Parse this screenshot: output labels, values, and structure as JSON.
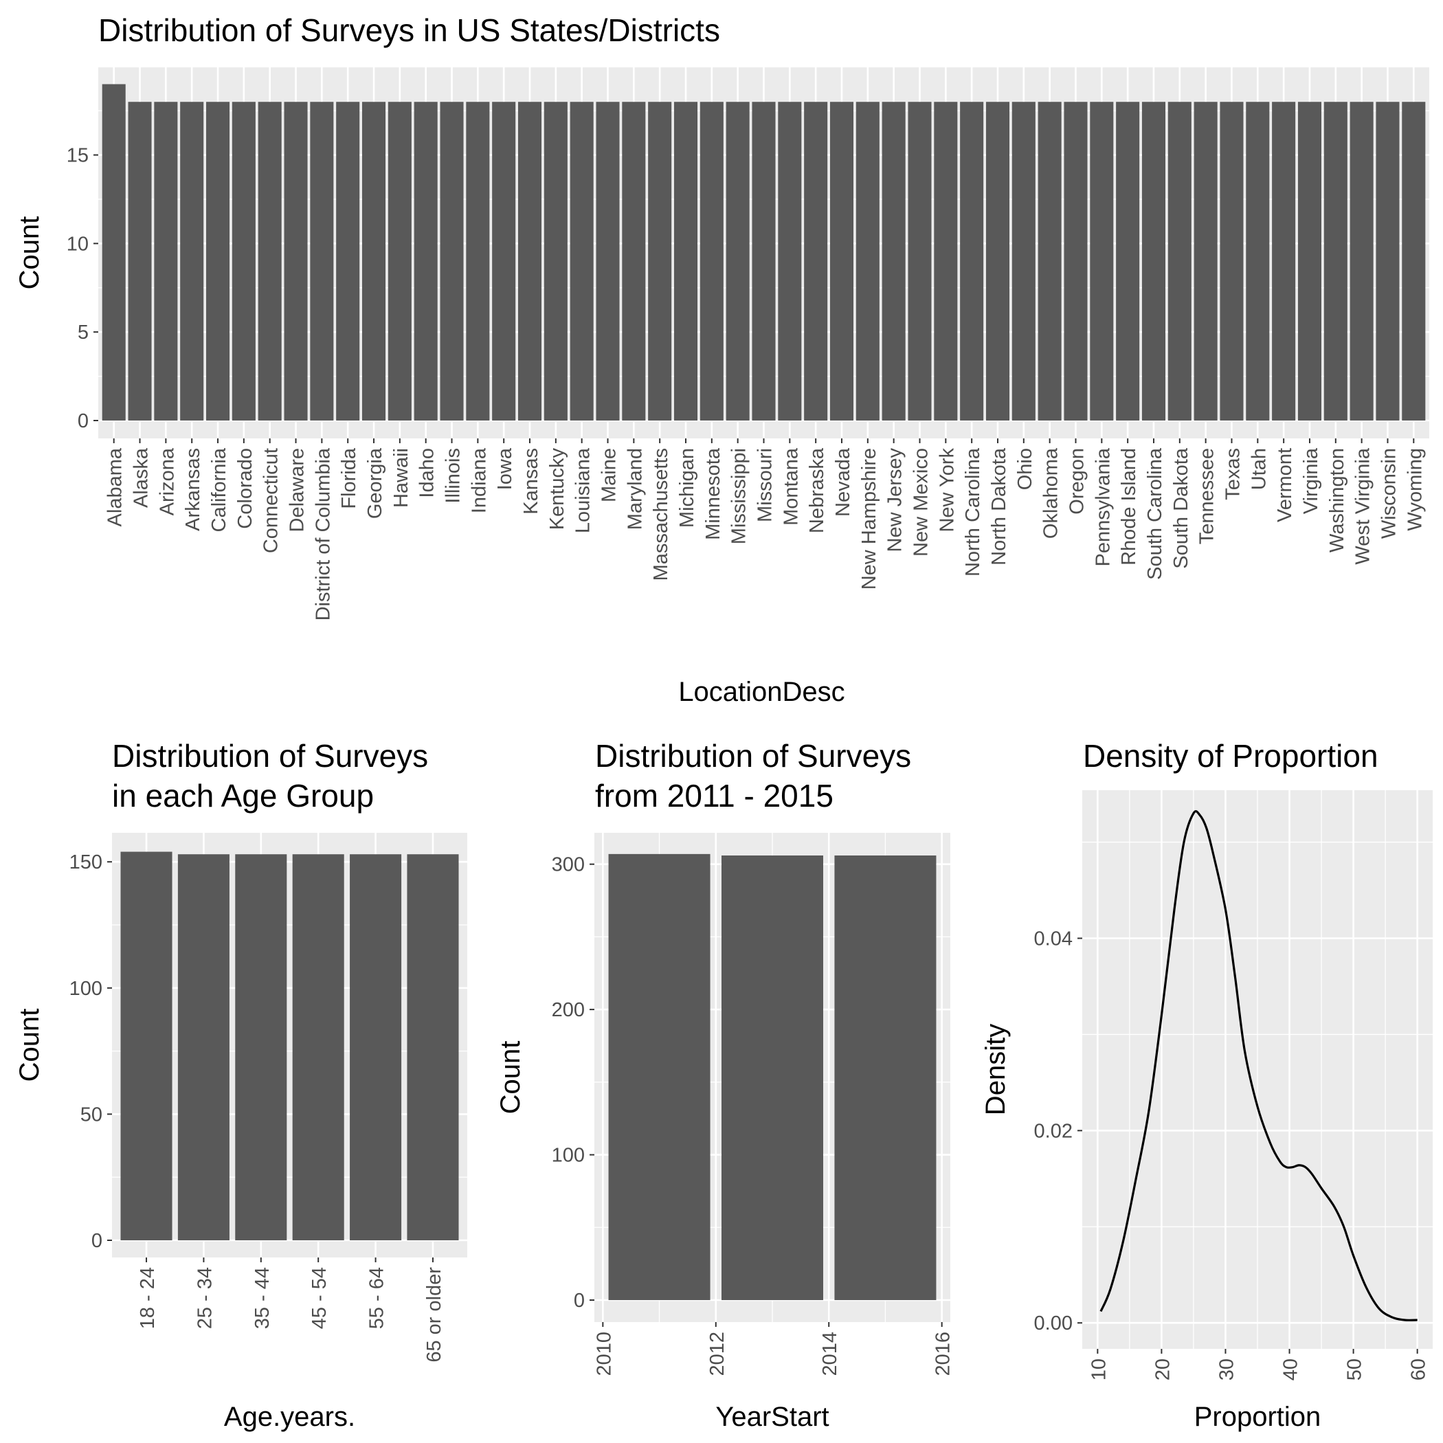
{
  "chart_data": [
    {
      "type": "bar",
      "title": "Distribution of Surveys in US States/Districts",
      "xlabel": "LocationDesc",
      "ylabel": "Count",
      "ylim": [
        0,
        19.95
      ],
      "y_ticks": [
        0,
        5,
        10,
        15
      ],
      "grid": true,
      "categories": [
        "Alabama",
        "Alaska",
        "Arizona",
        "Arkansas",
        "California",
        "Colorado",
        "Connecticut",
        "Delaware",
        "District of Columbia",
        "Florida",
        "Georgia",
        "Hawaii",
        "Idaho",
        "Illinois",
        "Indiana",
        "Iowa",
        "Kansas",
        "Kentucky",
        "Louisiana",
        "Maine",
        "Maryland",
        "Massachusetts",
        "Michigan",
        "Minnesota",
        "Mississippi",
        "Missouri",
        "Montana",
        "Nebraska",
        "Nevada",
        "New Hampshire",
        "New Jersey",
        "New Mexico",
        "New York",
        "North Carolina",
        "North Dakota",
        "Ohio",
        "Oklahoma",
        "Oregon",
        "Pennsylvania",
        "Rhode Island",
        "South Carolina",
        "South Dakota",
        "Tennessee",
        "Texas",
        "Utah",
        "Vermont",
        "Virginia",
        "Washington",
        "West Virginia",
        "Wisconsin",
        "Wyoming"
      ],
      "values": [
        19,
        18,
        18,
        18,
        18,
        18,
        18,
        18,
        18,
        18,
        18,
        18,
        18,
        18,
        18,
        18,
        18,
        18,
        18,
        18,
        18,
        18,
        18,
        18,
        18,
        18,
        18,
        18,
        18,
        18,
        18,
        18,
        18,
        18,
        18,
        18,
        18,
        18,
        18,
        18,
        18,
        18,
        18,
        18,
        18,
        18,
        18,
        18,
        18,
        18,
        18
      ],
      "bar_color": "#595959",
      "panel_color": "#ebebeb"
    },
    {
      "type": "bar",
      "title_lines": [
        "Distribution of Surveys",
        " in each Age Group"
      ],
      "xlabel": "Age.years.",
      "ylabel": "Count",
      "ylim": [
        0,
        161.5
      ],
      "y_ticks": [
        0,
        50,
        100,
        150
      ],
      "grid": true,
      "categories": [
        "18 - 24",
        "25 - 34",
        "35 - 44",
        "45 - 54",
        "55 - 64",
        "65 or older"
      ],
      "values": [
        154,
        153,
        153,
        153,
        153,
        153
      ],
      "bar_color": "#595959",
      "panel_color": "#ebebeb"
    },
    {
      "type": "bar",
      "title_lines": [
        "Distribution of Surveys",
        " from 2011 - 2015"
      ],
      "xlabel": "YearStart",
      "ylabel": "Count",
      "xlim": [
        2009.85,
        2016.15
      ],
      "ylim": [
        0,
        321.6
      ],
      "x_ticks": [
        2010,
        2012,
        2014,
        2016
      ],
      "y_ticks": [
        0,
        100,
        200,
        300
      ],
      "grid": true,
      "bars": [
        {
          "x": 2011,
          "width": 1.8,
          "value": 307
        },
        {
          "x": 2013,
          "width": 1.8,
          "value": 306
        },
        {
          "x": 2015,
          "width": 1.8,
          "value": 306
        }
      ],
      "bar_color": "#595959",
      "panel_color": "#ebebeb"
    },
    {
      "type": "line",
      "title": "Density of Proportion",
      "xlabel": "Proportion",
      "ylabel": "Density",
      "xlim": [
        7.6,
        62.4
      ],
      "ylim": [
        -0.0027,
        0.0554
      ],
      "x_ticks": [
        10,
        20,
        30,
        40,
        50,
        60
      ],
      "y_ticks": [
        0.0,
        0.02,
        0.04
      ],
      "y_tick_labels": [
        "0.00",
        "0.02",
        "0.04"
      ],
      "grid": true,
      "series": [
        {
          "x": [
            10.5,
            12,
            14,
            16,
            18,
            20,
            22,
            23.5,
            25,
            26,
            27,
            28,
            30,
            31.5,
            33,
            35,
            37,
            38.5,
            39.5,
            40.5,
            41.5,
            42.5,
            43.5,
            45,
            47,
            48.5,
            50,
            52,
            54,
            56,
            58,
            60
          ],
          "y": [
            0.0012,
            0.0035,
            0.0085,
            0.015,
            0.022,
            0.032,
            0.043,
            0.05,
            0.053,
            0.0528,
            0.0515,
            0.049,
            0.043,
            0.036,
            0.0283,
            0.0225,
            0.0187,
            0.0168,
            0.0162,
            0.0162,
            0.0164,
            0.0162,
            0.0155,
            0.014,
            0.0121,
            0.01,
            0.007,
            0.0037,
            0.0015,
            0.0006,
            0.0003,
            0.0003
          ]
        }
      ],
      "line_color": "#000000",
      "panel_color": "#ebebeb"
    }
  ]
}
